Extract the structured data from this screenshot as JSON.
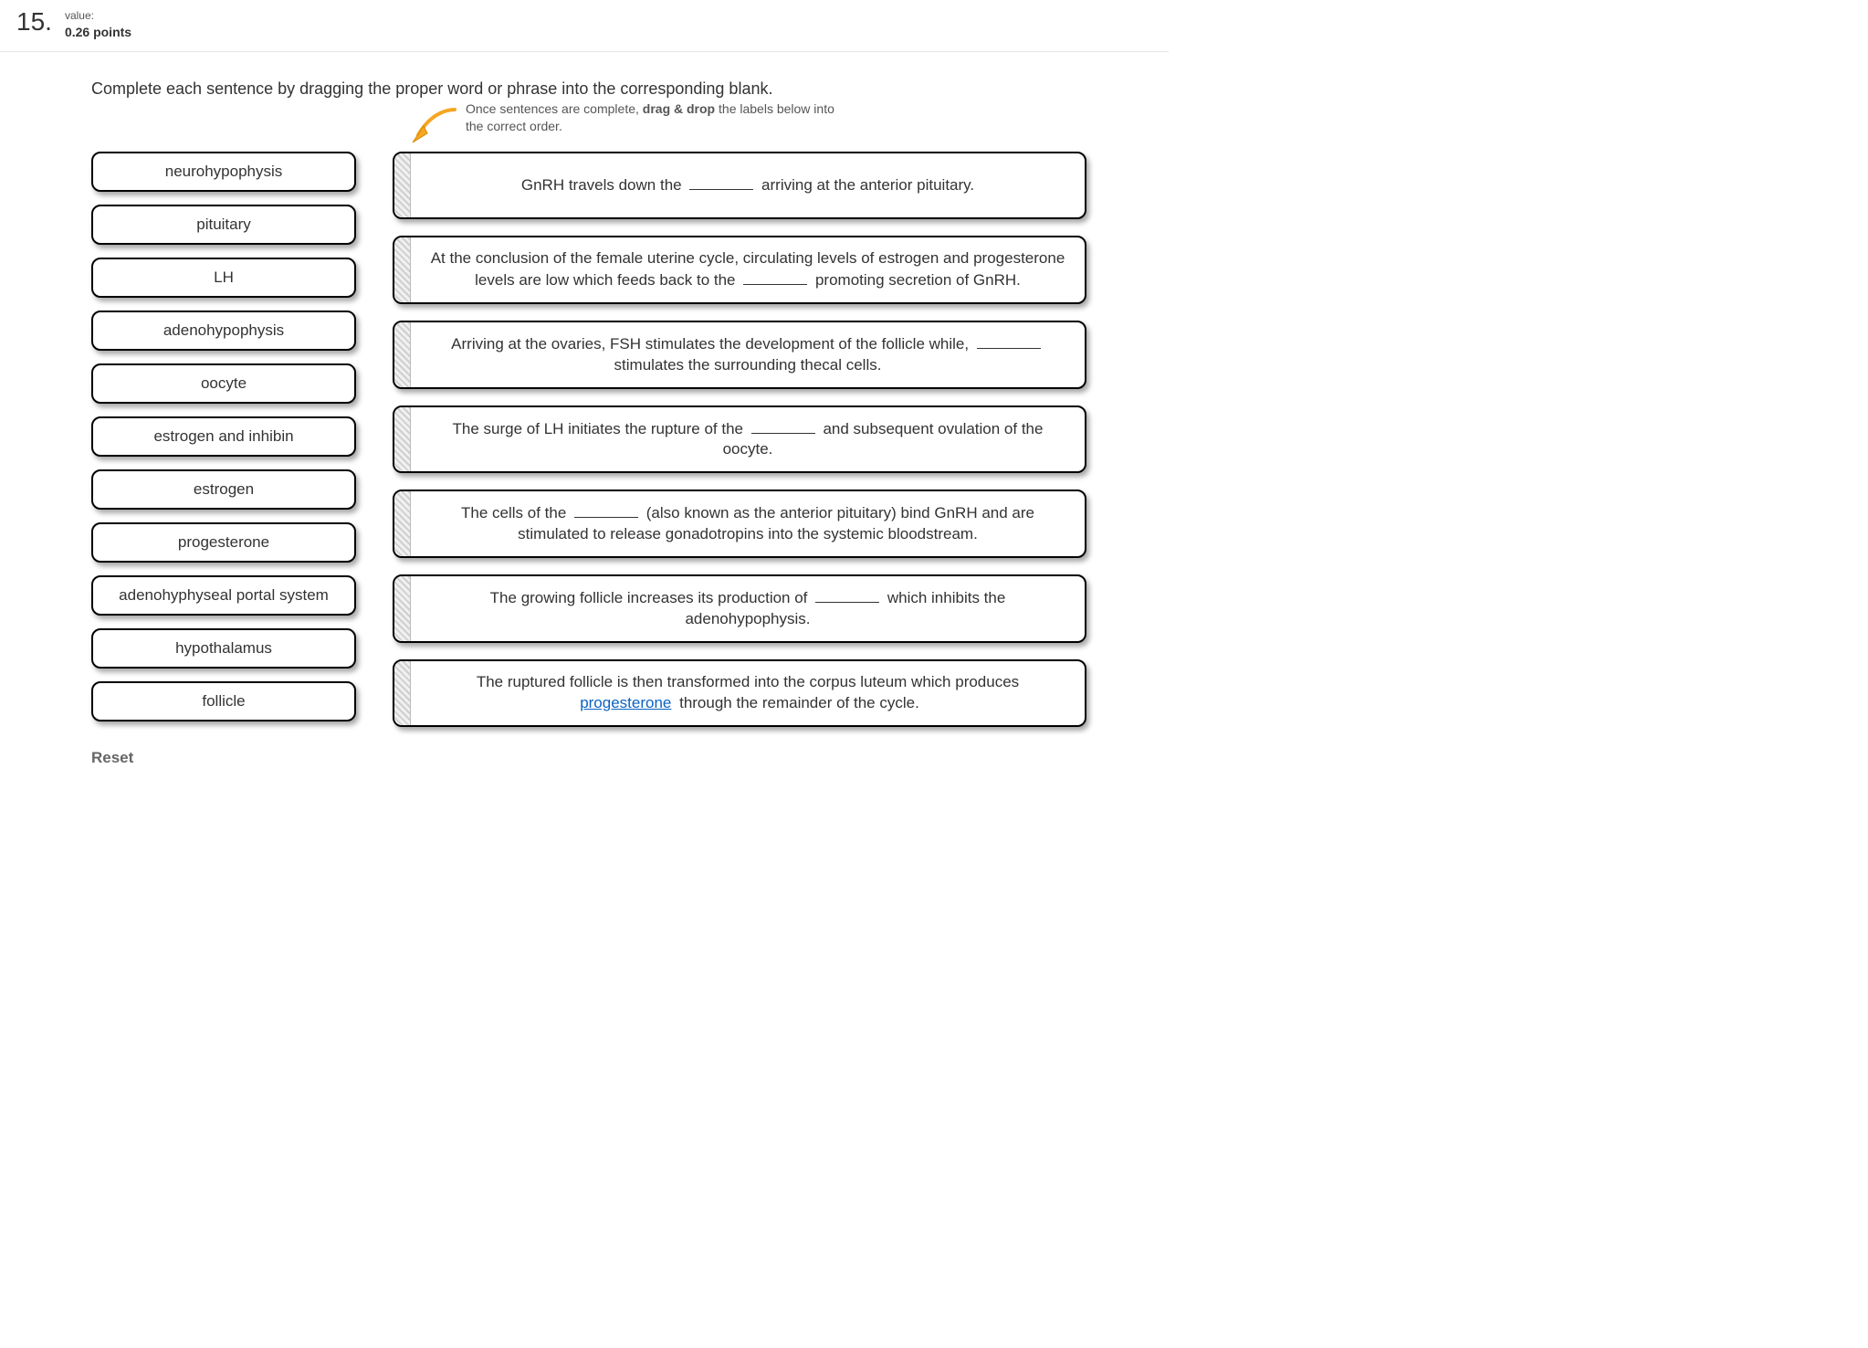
{
  "header": {
    "question_number": "15.",
    "value_label": "value:",
    "points": "0.26 points"
  },
  "prompt": "Complete each sentence by dragging the proper word or phrase into the corresponding blank.",
  "subprompt_html": "Once sentences are complete, <b>drag & drop</b> the labels below into the correct order.",
  "arrow_color": "#f5a623",
  "word_bank": [
    "neurohypophysis",
    "pituitary",
    "LH",
    "adenohypophysis",
    "oocyte",
    "estrogen and inhibin",
    "estrogen",
    "progesterone",
    "adenohyphyseal portal system",
    "hypothalamus",
    "follicle"
  ],
  "targets": [
    {
      "segments": [
        {
          "t": "GnRH travels down the "
        },
        {
          "blank": true
        },
        {
          "t": " arriving at the anterior pituitary."
        }
      ]
    },
    {
      "segments": [
        {
          "t": "At the conclusion of the female uterine cycle, circulating levels of estrogen and progesterone levels are low which feeds back to the "
        },
        {
          "blank": true
        },
        {
          "t": " promoting secretion of GnRH."
        }
      ]
    },
    {
      "segments": [
        {
          "t": "Arriving at the ovaries, FSH stimulates the development of the follicle while, "
        },
        {
          "blank": true
        },
        {
          "t": " stimulates the surrounding thecal cells."
        }
      ]
    },
    {
      "segments": [
        {
          "t": "The surge of LH initiates the rupture of the "
        },
        {
          "blank": true
        },
        {
          "t": " and subsequent ovulation of the oocyte."
        }
      ]
    },
    {
      "segments": [
        {
          "t": "The cells of the "
        },
        {
          "blank": true
        },
        {
          "t": " (also known as the anterior pituitary) bind GnRH and are stimulated to release gonadotropins into the systemic bloodstream."
        }
      ]
    },
    {
      "segments": [
        {
          "t": "The growing follicle increases its production of "
        },
        {
          "blank": true
        },
        {
          "t": " which inhibits the adenohypophysis."
        }
      ]
    },
    {
      "segments": [
        {
          "t": "The ruptured follicle is then transformed into the corpus luteum which produces "
        },
        {
          "filled": "progesterone"
        },
        {
          "t": " through the remainder of the cycle."
        }
      ]
    }
  ],
  "reset_label": "Reset"
}
